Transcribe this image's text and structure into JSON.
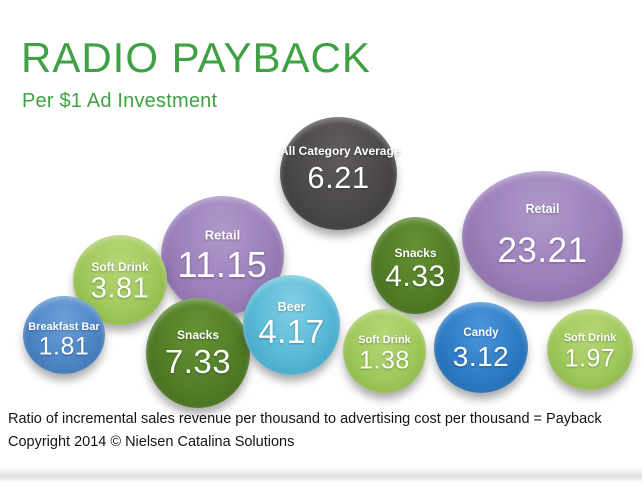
{
  "header": {
    "title": "RADIO PAYBACK",
    "subtitle": "Per $1 Ad Investment",
    "accent": "#3fa044"
  },
  "chart_data": {
    "type": "bubble",
    "title": "RADIO PAYBACK",
    "subtitle": "Per $1 Ad Investment",
    "value_meaning": "payback ratio of incremental sales per $1 of radio ad investment; bubble size proportional to value",
    "points": [
      {
        "label": "All Category Average",
        "value": "6.21",
        "color": "gray"
      },
      {
        "label": "Retail",
        "value": "23.21",
        "color": "purple"
      },
      {
        "label": "Retail",
        "value": "11.15",
        "color": "purple"
      },
      {
        "label": "Soft Drink",
        "value": "3.81",
        "color": "light_green"
      },
      {
        "label": "Snacks",
        "value": "4.33",
        "color": "dark_green"
      },
      {
        "label": "Snacks",
        "value": "7.33",
        "color": "dark_green"
      },
      {
        "label": "Beer",
        "value": "4.17",
        "color": "light_blue"
      },
      {
        "label": "Breakfast Bar",
        "value": "1.81",
        "color": "blue"
      },
      {
        "label": "Soft Drink",
        "value": "1.38",
        "color": "light_green"
      },
      {
        "label": "Candy",
        "value": "3.12",
        "color": "vivid_blue"
      },
      {
        "label": "Soft Drink",
        "value": "1.97",
        "color": "light_green"
      }
    ]
  },
  "palette": {
    "gray": {
      "top": "#605c5d",
      "mid": "#4b4849",
      "bottom": "#383536"
    },
    "purple": {
      "top": "#b098ca",
      "mid": "#9b80bb",
      "bottom": "#80649d"
    },
    "light_green": {
      "top": "#b6d675",
      "mid": "#a0c95c",
      "bottom": "#82a93f"
    },
    "dark_green": {
      "top": "#649233",
      "mid": "#527d27",
      "bottom": "#3f641c"
    },
    "blue": {
      "top": "#6da0da",
      "mid": "#4d86c6",
      "bottom": "#3868a8"
    },
    "vivid_blue": {
      "top": "#4b95dc",
      "mid": "#2e7cc4",
      "bottom": "#1b5ea4"
    },
    "light_blue": {
      "top": "#82cfe5",
      "mid": "#58b9d6",
      "bottom": "#3898bc"
    }
  },
  "footer": {
    "line1": "Ratio of incremental sales revenue per thousand to advertising cost per thousand = Payback",
    "line2": "Copyright 2014 © Nielsen Catalina Solutions"
  }
}
